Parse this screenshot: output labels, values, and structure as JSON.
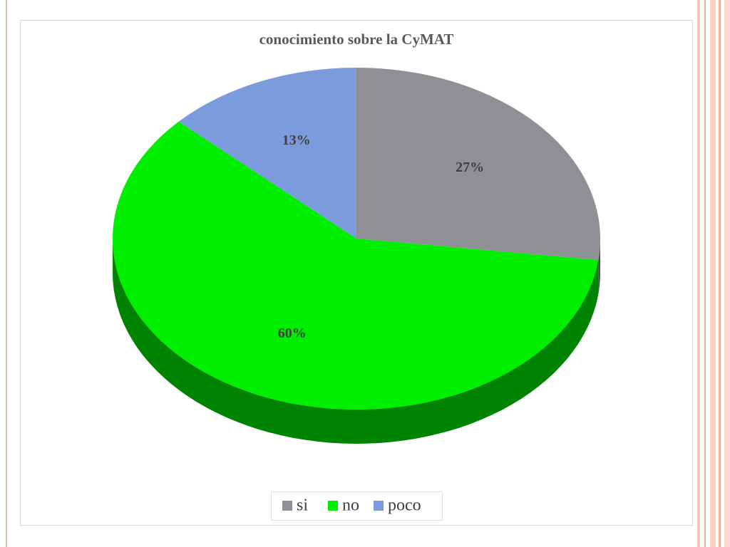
{
  "chart_data": {
    "type": "pie",
    "title": "conocimiento sobre la CyMAT",
    "categories": [
      "si",
      "no",
      "poco"
    ],
    "values": [
      27,
      60,
      13
    ],
    "value_labels": [
      "27%",
      "60%",
      "13%"
    ],
    "colors": [
      "#8e9096",
      "#00ee00",
      "#7b9bdc"
    ],
    "legend": "bottom"
  }
}
